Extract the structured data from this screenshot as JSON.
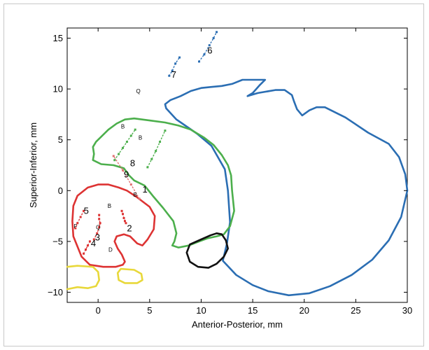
{
  "chart_data": {
    "type": "line",
    "title": "",
    "xlabel": "Anterior-Posterior, mm",
    "ylabel": "Superior-Inferior, mm",
    "xlim": [
      -3,
      30
    ],
    "ylim": [
      -11,
      16
    ],
    "x_ticks": [
      0,
      5,
      10,
      15,
      20,
      25,
      30
    ],
    "y_ticks": [
      -10,
      -5,
      0,
      5,
      10,
      15
    ],
    "grid": false,
    "legend": "none",
    "contours": [
      {
        "color": "#2b6eb3",
        "closed": true,
        "points": [
          [
            6.6,
            8.1
          ],
          [
            7.6,
            7.0
          ],
          [
            9.6,
            5.6
          ],
          [
            11.0,
            4.4
          ],
          [
            12.3,
            2.1
          ],
          [
            12.6,
            0.0
          ],
          [
            12.8,
            -3.1
          ],
          [
            12.5,
            -5.2
          ],
          [
            12.1,
            -6.9
          ],
          [
            13.4,
            -8.3
          ],
          [
            15.0,
            -9.3
          ],
          [
            16.5,
            -9.9
          ],
          [
            18.5,
            -10.3
          ],
          [
            20.5,
            -10.1
          ],
          [
            22.5,
            -9.4
          ],
          [
            24.6,
            -8.3
          ],
          [
            26.6,
            -6.8
          ],
          [
            28.2,
            -4.9
          ],
          [
            29.4,
            -2.6
          ],
          [
            30.0,
            0.0
          ],
          [
            29.8,
            1.6
          ],
          [
            29.2,
            3.3
          ],
          [
            28.2,
            4.6
          ],
          [
            26.2,
            5.7
          ],
          [
            24.0,
            7.2
          ],
          [
            22.0,
            8.2
          ],
          [
            21.2,
            8.2
          ],
          [
            20.5,
            7.9
          ],
          [
            19.8,
            7.4
          ],
          [
            19.3,
            8.0
          ],
          [
            19.0,
            8.8
          ],
          [
            18.8,
            9.4
          ],
          [
            18.1,
            9.9
          ],
          [
            17.2,
            9.9
          ],
          [
            15.5,
            9.6
          ],
          [
            14.5,
            9.3
          ],
          [
            15.0,
            9.6
          ],
          [
            15.7,
            10.4
          ],
          [
            16.2,
            10.9
          ],
          [
            15.0,
            10.9
          ],
          [
            14.0,
            10.9
          ],
          [
            13.0,
            10.5
          ],
          [
            12.0,
            10.3
          ],
          [
            11.0,
            10.2
          ],
          [
            10.0,
            10.1
          ],
          [
            9.0,
            9.8
          ],
          [
            8.0,
            9.3
          ],
          [
            7.0,
            8.9
          ],
          [
            6.5,
            8.5
          ]
        ]
      },
      {
        "color": "#4caf4c",
        "closed": true,
        "points": [
          [
            -0.5,
            3.0
          ],
          [
            0.3,
            2.6
          ],
          [
            1.5,
            2.5
          ],
          [
            2.5,
            2.2
          ],
          [
            3.0,
            1.5
          ],
          [
            3.5,
            1.0
          ],
          [
            4.5,
            0.5
          ],
          [
            5.3,
            -0.5
          ],
          [
            6.3,
            -1.7
          ],
          [
            7.3,
            -3.0
          ],
          [
            7.6,
            -4.2
          ],
          [
            7.4,
            -5.0
          ],
          [
            7.2,
            -5.4
          ],
          [
            7.8,
            -5.6
          ],
          [
            8.8,
            -5.4
          ],
          [
            9.8,
            -5.0
          ],
          [
            10.6,
            -4.7
          ],
          [
            11.5,
            -4.5
          ],
          [
            12.2,
            -4.3
          ],
          [
            12.8,
            -3.5
          ],
          [
            13.2,
            -2.0
          ],
          [
            13.0,
            0.0
          ],
          [
            12.9,
            1.5
          ],
          [
            12.6,
            2.5
          ],
          [
            12.0,
            3.5
          ],
          [
            11.2,
            4.5
          ],
          [
            10.3,
            5.2
          ],
          [
            9.0,
            6.0
          ],
          [
            7.8,
            6.4
          ],
          [
            6.5,
            6.7
          ],
          [
            5.0,
            6.9
          ],
          [
            3.5,
            7.1
          ],
          [
            2.6,
            7.0
          ],
          [
            1.8,
            6.6
          ],
          [
            1.0,
            6.0
          ],
          [
            0.3,
            5.3
          ],
          [
            -0.2,
            4.8
          ],
          [
            -0.5,
            4.3
          ],
          [
            -0.4,
            3.6
          ]
        ]
      },
      {
        "color": "#dd3333",
        "closed": true,
        "points": [
          [
            -1.6,
            -6.5
          ],
          [
            -2.4,
            -4.5
          ],
          [
            -2.5,
            -3.0
          ],
          [
            -2.4,
            -1.5
          ],
          [
            -2.0,
            -0.5
          ],
          [
            -1.0,
            0.3
          ],
          [
            0.0,
            0.6
          ],
          [
            1.0,
            0.6
          ],
          [
            2.0,
            0.3
          ],
          [
            2.8,
            0.0
          ],
          [
            3.7,
            -0.6
          ],
          [
            5.0,
            -1.6
          ],
          [
            5.5,
            -2.5
          ],
          [
            5.4,
            -3.8
          ],
          [
            4.8,
            -4.8
          ],
          [
            4.3,
            -5.4
          ],
          [
            3.8,
            -5.2
          ],
          [
            3.1,
            -4.5
          ],
          [
            2.5,
            -4.3
          ],
          [
            1.8,
            -4.5
          ],
          [
            1.6,
            -5.0
          ],
          [
            1.9,
            -5.7
          ],
          [
            2.3,
            -6.3
          ],
          [
            2.6,
            -7.0
          ],
          [
            2.4,
            -7.3
          ],
          [
            1.7,
            -7.5
          ],
          [
            0.5,
            -7.5
          ],
          [
            -0.8,
            -7.3
          ]
        ]
      },
      {
        "color": "#111111",
        "closed": true,
        "points": [
          [
            10.0,
            -4.8
          ],
          [
            8.9,
            -5.3
          ],
          [
            8.6,
            -6.1
          ],
          [
            8.9,
            -7.0
          ],
          [
            9.7,
            -7.5
          ],
          [
            10.7,
            -7.6
          ],
          [
            11.5,
            -7.2
          ],
          [
            12.2,
            -6.5
          ],
          [
            12.6,
            -5.7
          ],
          [
            12.4,
            -4.9
          ],
          [
            12.0,
            -4.3
          ],
          [
            11.5,
            -4.2
          ],
          [
            10.9,
            -4.4
          ]
        ]
      },
      {
        "color": "#e8d83a",
        "closed": false,
        "points": [
          [
            -3.0,
            -7.5
          ],
          [
            -2.0,
            -7.4
          ],
          [
            -0.5,
            -7.5
          ],
          [
            0.0,
            -8.0
          ],
          [
            0.1,
            -8.8
          ],
          [
            -0.2,
            -9.4
          ],
          [
            -1.0,
            -9.6
          ],
          [
            -2.0,
            -9.5
          ],
          [
            -3.0,
            -9.7
          ]
        ]
      },
      {
        "color": "#e8d83a",
        "closed": true,
        "points": [
          [
            1.9,
            -8.1
          ],
          [
            2.2,
            -7.7
          ],
          [
            3.5,
            -7.8
          ],
          [
            4.2,
            -8.2
          ],
          [
            4.3,
            -8.8
          ],
          [
            3.8,
            -9.1
          ],
          [
            2.6,
            -9.1
          ],
          [
            2.0,
            -8.8
          ]
        ]
      }
    ],
    "tracks": [
      {
        "label": "1",
        "label_x": 4.3,
        "label_y": -0.2,
        "color": "#e07070",
        "points": [
          [
            4.0,
            -0.8
          ],
          [
            3.2,
            0.6
          ],
          [
            2.4,
            2.0
          ],
          [
            1.5,
            3.4
          ]
        ]
      },
      {
        "label": "2",
        "label_x": 2.8,
        "label_y": -4.0,
        "color": "#dd3333",
        "points": [
          [
            2.3,
            -2.0
          ],
          [
            2.4,
            -2.3
          ],
          [
            2.5,
            -2.7
          ],
          [
            2.6,
            -3.0
          ],
          [
            2.7,
            -3.2
          ]
        ]
      },
      {
        "label": "3",
        "label_x": -0.3,
        "label_y": -4.9,
        "color": "#dd3333",
        "points": [
          [
            0.1,
            -2.4
          ],
          [
            0.1,
            -2.8
          ],
          [
            0.2,
            -3.2
          ],
          [
            0.1,
            -3.6
          ],
          [
            -0.1,
            -4.2
          ],
          [
            -0.4,
            -4.8
          ]
        ]
      },
      {
        "label": "4",
        "label_x": -0.7,
        "label_y": -5.5,
        "color": "#dd3333",
        "points": [
          [
            -0.8,
            -5.0
          ],
          [
            -1.0,
            -5.4
          ],
          [
            -1.2,
            -5.8
          ],
          [
            -1.4,
            -6.2
          ]
        ]
      },
      {
        "label": "5",
        "label_x": -1.4,
        "label_y": -2.3,
        "color": "#dd3333",
        "points": [
          [
            -1.4,
            -2.0
          ],
          [
            -1.7,
            -2.6
          ],
          [
            -2.0,
            -3.2
          ],
          [
            -2.2,
            -3.7
          ]
        ]
      },
      {
        "label": "6",
        "label_x": 10.6,
        "label_y": 13.5,
        "color": "#2b6eb3",
        "points": [
          [
            9.8,
            12.7
          ],
          [
            10.3,
            13.4
          ],
          [
            10.8,
            14.3
          ],
          [
            11.2,
            15.0
          ],
          [
            11.5,
            15.6
          ]
        ]
      },
      {
        "label": "7",
        "label_x": 7.1,
        "label_y": 11.1,
        "color": "#2b6eb3",
        "points": [
          [
            6.9,
            11.3
          ],
          [
            7.2,
            11.8
          ],
          [
            7.5,
            12.5
          ],
          [
            7.9,
            13.1
          ]
        ]
      },
      {
        "label": "8",
        "label_x": 3.1,
        "label_y": 2.4,
        "color": "#4caf4c",
        "points": [
          [
            1.6,
            3.0
          ],
          [
            2.0,
            3.6
          ],
          [
            2.4,
            4.2
          ],
          [
            2.8,
            4.8
          ],
          [
            3.2,
            5.4
          ],
          [
            3.6,
            6.0
          ]
        ]
      },
      {
        "label": "9",
        "label_x": 2.5,
        "label_y": 1.3,
        "color": "#4caf4c",
        "points": [
          [
            4.8,
            2.3
          ],
          [
            5.2,
            3.1
          ],
          [
            5.6,
            3.9
          ],
          [
            6.0,
            4.8
          ],
          [
            6.5,
            5.9
          ]
        ]
      }
    ],
    "markers": [
      {
        "label": "Q",
        "x": 3.9,
        "y": 9.6
      },
      {
        "label": "B",
        "x": 2.4,
        "y": 6.1
      },
      {
        "label": "B",
        "x": 4.1,
        "y": 5.0
      },
      {
        "label": "B",
        "x": 3.6,
        "y": -0.6
      },
      {
        "label": "B",
        "x": 1.1,
        "y": -1.7
      },
      {
        "label": "Q",
        "x": 0.0,
        "y": -3.8
      },
      {
        "label": "F",
        "x": -2.2,
        "y": -3.7
      },
      {
        "label": "D",
        "x": 1.2,
        "y": -6.0
      }
    ]
  }
}
